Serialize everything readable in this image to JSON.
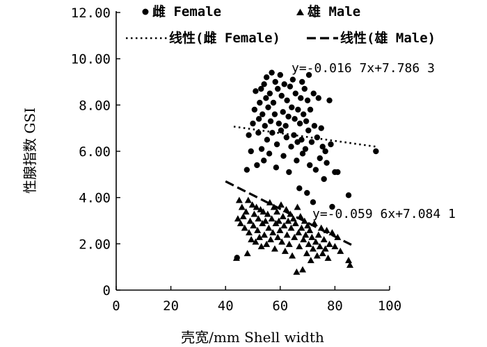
{
  "chart_data": {
    "type": "scatter",
    "title": "",
    "xlabel": "壳宽/mm Shell width",
    "ylabel": "性腺指数 GSI",
    "xlim": [
      0,
      100
    ],
    "ylim": [
      0,
      12
    ],
    "x_ticks": [
      "0",
      "20",
      "40",
      "60",
      "80",
      "100"
    ],
    "y_ticks": [
      "0",
      "2.00",
      "4.00",
      "6.00",
      "8.00",
      "10.00",
      "12.00"
    ],
    "grid": false,
    "legend": {
      "placement": "top",
      "entries": [
        {
          "label": "雌 Female",
          "marker": "circle"
        },
        {
          "label": "雄 Male",
          "marker": "triangle"
        },
        {
          "label": "线性(雌 Female)",
          "line": "dotted"
        },
        {
          "label": "线性(雄 Male)",
          "line": "dashed"
        }
      ]
    },
    "series": [
      {
        "name": "雌 Female",
        "marker": "circle",
        "color": "#000000",
        "points": [
          [
            44.2,
            1.4
          ],
          [
            47.8,
            5.2
          ],
          [
            48.5,
            6.7
          ],
          [
            49.3,
            6.0
          ],
          [
            50.0,
            7.2
          ],
          [
            50.6,
            7.8
          ],
          [
            51.0,
            8.6
          ],
          [
            51.5,
            5.4
          ],
          [
            52.0,
            6.8
          ],
          [
            52.2,
            7.4
          ],
          [
            52.5,
            8.1
          ],
          [
            53.0,
            8.7
          ],
          [
            53.2,
            6.1
          ],
          [
            53.5,
            7.6
          ],
          [
            54.0,
            5.6
          ],
          [
            54.1,
            8.9
          ],
          [
            54.4,
            7.1
          ],
          [
            54.8,
            8.3
          ],
          [
            55.0,
            9.2
          ],
          [
            55.2,
            6.5
          ],
          [
            55.6,
            7.9
          ],
          [
            56.0,
            5.9
          ],
          [
            56.2,
            8.5
          ],
          [
            56.5,
            7.3
          ],
          [
            56.9,
            9.4
          ],
          [
            57.1,
            6.8
          ],
          [
            57.5,
            8.1
          ],
          [
            58.0,
            7.6
          ],
          [
            58.2,
            9.0
          ],
          [
            58.5,
            5.3
          ],
          [
            58.8,
            6.3
          ],
          [
            59.1,
            8.7
          ],
          [
            59.5,
            7.2
          ],
          [
            60.0,
            9.3
          ],
          [
            60.3,
            6.9
          ],
          [
            60.5,
            8.4
          ],
          [
            61.0,
            7.7
          ],
          [
            61.2,
            5.8
          ],
          [
            61.5,
            8.9
          ],
          [
            62.0,
            7.1
          ],
          [
            62.3,
            6.6
          ],
          [
            62.5,
            8.2
          ],
          [
            63.0,
            7.5
          ],
          [
            63.2,
            5.1
          ],
          [
            63.6,
            8.8
          ],
          [
            64.0,
            6.2
          ],
          [
            64.2,
            7.9
          ],
          [
            64.6,
            9.1
          ],
          [
            65.0,
            6.7
          ],
          [
            65.3,
            7.4
          ],
          [
            65.6,
            8.5
          ],
          [
            66.0,
            5.6
          ],
          [
            66.3,
            6.4
          ],
          [
            66.5,
            7.8
          ],
          [
            67.0,
            4.4
          ],
          [
            67.2,
            7.2
          ],
          [
            67.5,
            8.3
          ],
          [
            67.8,
            6.5
          ],
          [
            68.0,
            9.0
          ],
          [
            68.2,
            5.9
          ],
          [
            68.5,
            7.6
          ],
          [
            68.9,
            8.7
          ],
          [
            69.2,
            6.1
          ],
          [
            69.5,
            7.3
          ],
          [
            69.8,
            4.2
          ],
          [
            70.0,
            8.2
          ],
          [
            70.3,
            6.9
          ],
          [
            70.5,
            9.3
          ],
          [
            70.8,
            5.4
          ],
          [
            71.0,
            7.8
          ],
          [
            71.5,
            6.4
          ],
          [
            72.0,
            3.8
          ],
          [
            72.2,
            8.5
          ],
          [
            72.5,
            7.1
          ],
          [
            73.0,
            5.2
          ],
          [
            73.5,
            6.6
          ],
          [
            74.0,
            8.3
          ],
          [
            74.5,
            5.7
          ],
          [
            75.0,
            7.0
          ],
          [
            75.5,
            6.2
          ],
          [
            76.0,
            4.8
          ],
          [
            76.5,
            6.0
          ],
          [
            77.0,
            5.5
          ],
          [
            78.0,
            8.2
          ],
          [
            78.5,
            6.3
          ],
          [
            79.0,
            3.6
          ],
          [
            80.0,
            5.1
          ],
          [
            81.0,
            5.1
          ],
          [
            85.0,
            4.1
          ],
          [
            95.0,
            6.0
          ]
        ]
      },
      {
        "name": "雄 Male",
        "marker": "triangle",
        "color": "#000000",
        "points": [
          [
            44.0,
            1.4
          ],
          [
            44.5,
            3.1
          ],
          [
            45.0,
            3.9
          ],
          [
            45.5,
            2.9
          ],
          [
            46.0,
            3.6
          ],
          [
            46.5,
            3.2
          ],
          [
            47.0,
            2.7
          ],
          [
            47.5,
            3.4
          ],
          [
            48.0,
            1.6
          ],
          [
            48.3,
            3.9
          ],
          [
            48.6,
            2.5
          ],
          [
            49.0,
            3.0
          ],
          [
            49.4,
            2.2
          ],
          [
            49.8,
            3.7
          ],
          [
            50.2,
            2.8
          ],
          [
            50.5,
            3.3
          ],
          [
            51.0,
            2.1
          ],
          [
            51.3,
            3.6
          ],
          [
            51.7,
            2.6
          ],
          [
            52.0,
            3.1
          ],
          [
            52.4,
            2.3
          ],
          [
            52.8,
            3.5
          ],
          [
            53.1,
            1.9
          ],
          [
            53.5,
            2.9
          ],
          [
            53.8,
            3.4
          ],
          [
            54.2,
            2.4
          ],
          [
            54.6,
            3.0
          ],
          [
            55.0,
            2.0
          ],
          [
            55.4,
            3.3
          ],
          [
            55.8,
            2.7
          ],
          [
            56.2,
            3.8
          ],
          [
            56.5,
            2.2
          ],
          [
            56.9,
            3.1
          ],
          [
            57.3,
            2.5
          ],
          [
            57.7,
            3.6
          ],
          [
            58.0,
            1.8
          ],
          [
            58.4,
            2.9
          ],
          [
            58.8,
            3.4
          ],
          [
            59.1,
            2.3
          ],
          [
            59.5,
            3.0
          ],
          [
            59.9,
            2.6
          ],
          [
            60.3,
            3.7
          ],
          [
            60.6,
            2.1
          ],
          [
            61.0,
            3.2
          ],
          [
            61.4,
            2.8
          ],
          [
            61.8,
            1.7
          ],
          [
            62.2,
            3.5
          ],
          [
            62.5,
            2.4
          ],
          [
            62.9,
            3.0
          ],
          [
            63.3,
            2.0
          ],
          [
            63.7,
            3.3
          ],
          [
            64.0,
            2.7
          ],
          [
            64.4,
            1.5
          ],
          [
            64.8,
            3.1
          ],
          [
            65.2,
            2.3
          ],
          [
            65.6,
            2.9
          ],
          [
            66.0,
            0.8
          ],
          [
            66.3,
            3.6
          ],
          [
            66.7,
            2.5
          ],
          [
            67.0,
            1.9
          ],
          [
            67.4,
            3.2
          ],
          [
            67.8,
            2.7
          ],
          [
            68.2,
            0.9
          ],
          [
            68.5,
            2.2
          ],
          [
            68.9,
            3.0
          ],
          [
            69.3,
            2.4
          ],
          [
            69.7,
            1.6
          ],
          [
            70.0,
            2.8
          ],
          [
            70.4,
            2.0
          ],
          [
            70.8,
            2.6
          ],
          [
            71.2,
            1.3
          ],
          [
            71.6,
            2.3
          ],
          [
            72.0,
            1.8
          ],
          [
            72.5,
            2.9
          ],
          [
            73.0,
            2.1
          ],
          [
            73.5,
            1.5
          ],
          [
            74.0,
            2.4
          ],
          [
            74.5,
            1.9
          ],
          [
            75.0,
            2.7
          ],
          [
            75.5,
            1.6
          ],
          [
            76.0,
            2.2
          ],
          [
            76.5,
            1.8
          ],
          [
            77.0,
            2.6
          ],
          [
            77.5,
            1.4
          ],
          [
            78.0,
            2.0
          ],
          [
            79.0,
            2.5
          ],
          [
            80.0,
            1.9
          ],
          [
            81.0,
            2.3
          ],
          [
            82.0,
            1.7
          ],
          [
            85.0,
            1.3
          ],
          [
            85.5,
            1.1
          ]
        ]
      }
    ],
    "trendlines": [
      {
        "name": "线性(雌 Female)",
        "style": "dotted",
        "slope": -0.0167,
        "intercept": 7.7863,
        "x_range": [
          43,
          95
        ]
      },
      {
        "name": "线性(雄 Male)",
        "style": "dashed",
        "slope": -0.0596,
        "intercept": 7.0841,
        "x_range": [
          40,
          86
        ]
      }
    ],
    "annotations": [
      {
        "series": "雌 Female",
        "equation": "y=-0.016 7x+7.786 3"
      },
      {
        "series": "雄 Male",
        "equation": "y=-0.059 6x+7.084 1"
      }
    ]
  }
}
